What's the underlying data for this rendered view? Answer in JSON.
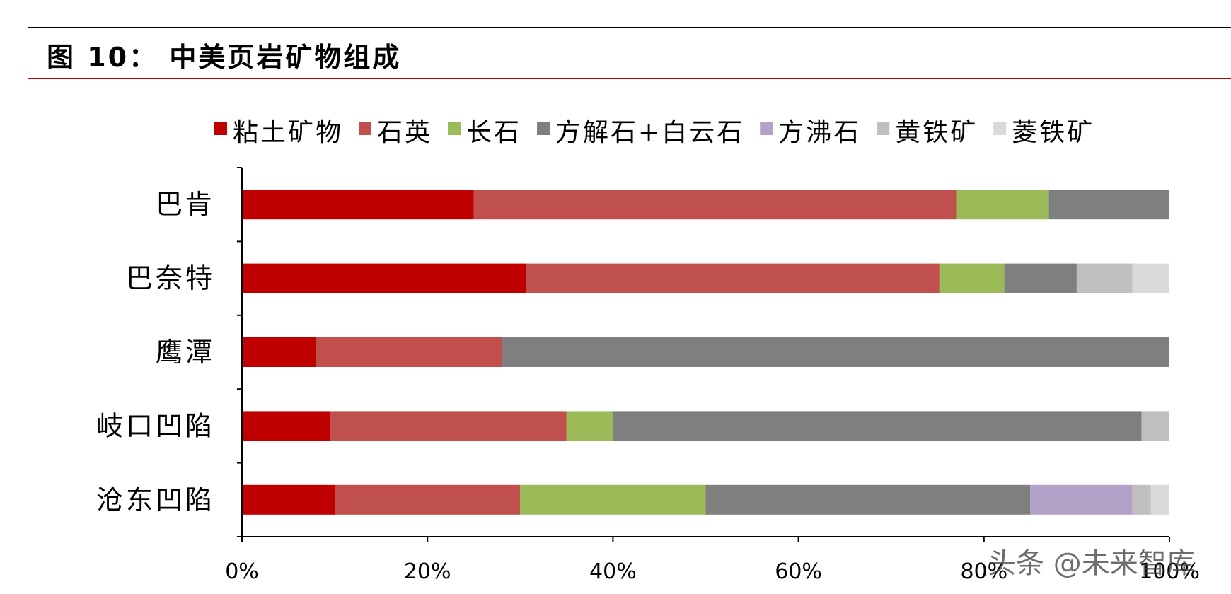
{
  "title": "图 10： 中美页岩矿物组成",
  "watermark": "头条 @未来智库",
  "chart_data": {
    "type": "bar",
    "orientation": "horizontal",
    "stacked": true,
    "categories": [
      "巴肯",
      "巴奈特",
      "鹰潭",
      "岐口凹陷",
      "沧东凹陷"
    ],
    "series": [
      {
        "name": "粘土矿物",
        "color": "#c00000",
        "values": [
          25,
          30.6,
          8,
          9.5,
          10
        ]
      },
      {
        "name": "石英",
        "color": "#c0504d",
        "values": [
          52,
          44.6,
          20,
          25.5,
          20
        ]
      },
      {
        "name": "长石",
        "color": "#9bbb59",
        "values": [
          10,
          7,
          0,
          5,
          20
        ]
      },
      {
        "name": "方解石+白云石",
        "color": "#7f7f7f",
        "values": [
          13,
          7.8,
          72,
          57,
          35
        ]
      },
      {
        "name": "方沸石",
        "color": "#b3a2c7",
        "values": [
          0,
          0,
          0,
          0,
          11
        ]
      },
      {
        "name": "黄铁矿",
        "color": "#bfbfbf",
        "values": [
          0,
          6,
          0,
          3,
          2
        ]
      },
      {
        "name": "菱铁矿",
        "color": "#d9d9d9",
        "values": [
          0,
          4,
          0,
          0,
          2
        ]
      }
    ],
    "xlim": [
      0,
      100
    ],
    "xticks": [
      "0%",
      "20%",
      "40%",
      "60%",
      "80%",
      "100%"
    ],
    "xlabel": "",
    "ylabel": "",
    "legend": "top",
    "grid": false
  }
}
